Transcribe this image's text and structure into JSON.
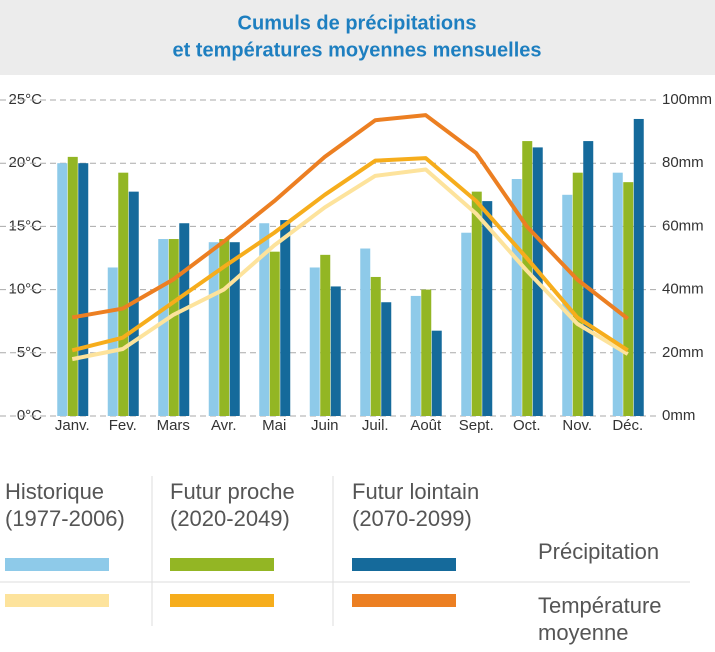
{
  "chart_data": {
    "type": "bar-line",
    "title": [
      "Cumuls de précipitations",
      "et températures moyennes mensuelles"
    ],
    "categories": [
      "Janv.",
      "Fev.",
      "Mars",
      "Avr.",
      "Mai",
      "Juin",
      "Juil.",
      "Août",
      "Sept.",
      "Oct.",
      "Nov.",
      "Déc."
    ],
    "periods": [
      "Historique (1977-2006)",
      "Futur proche (2020-2049)",
      "Futur lointain (2070-2099)"
    ],
    "precipitation": {
      "label": "Précipitation",
      "axis": "y2",
      "series": [
        {
          "color": "#8ecae9",
          "values": [
            80,
            47,
            56,
            55,
            61,
            47,
            53,
            38,
            58,
            75,
            70,
            77
          ]
        },
        {
          "color": "#93b624",
          "values": [
            82,
            77,
            56,
            56,
            52,
            51,
            44,
            40,
            71,
            87,
            77,
            74
          ]
        },
        {
          "color": "#156a9b",
          "values": [
            80,
            71,
            61,
            55,
            62,
            41,
            36,
            27,
            68,
            85,
            87,
            94
          ]
        }
      ]
    },
    "temperature": {
      "label": "Température moyenne",
      "axis": "y",
      "series": [
        {
          "color": "#fde39c",
          "values": [
            4.5,
            5.3,
            8,
            10,
            13.5,
            16.5,
            19,
            19.5,
            16,
            11.5,
            7.3,
            4.9
          ]
        },
        {
          "color": "#f6ad1c",
          "values": [
            5.2,
            6.2,
            9,
            11.8,
            14.5,
            17.5,
            20.2,
            20.4,
            17,
            12.5,
            7.8,
            5.2
          ]
        },
        {
          "color": "#ec7f22",
          "values": [
            7.8,
            8.5,
            10.8,
            13.8,
            17,
            20.5,
            23.4,
            23.8,
            20.8,
            15,
            10.8,
            7.7
          ]
        }
      ]
    },
    "ylim": [
      0,
      25
    ],
    "yticks": [
      {
        "value": 0,
        "label": "0°C"
      },
      {
        "value": 5,
        "label": "5°C"
      },
      {
        "value": 10,
        "label": "10°C"
      },
      {
        "value": 15,
        "label": "15°C"
      },
      {
        "value": 20,
        "label": "20°C"
      },
      {
        "value": 25,
        "label": "25°C"
      }
    ],
    "y2lim": [
      0,
      100
    ],
    "y2ticks": [
      {
        "value": 0,
        "label": "0mm"
      },
      {
        "value": 20,
        "label": "20mm"
      },
      {
        "value": 40,
        "label": "40mm"
      },
      {
        "value": 60,
        "label": "60mm"
      },
      {
        "value": 80,
        "label": "80mm"
      },
      {
        "value": 100,
        "label": "100mm"
      }
    ],
    "grid": true
  }
}
